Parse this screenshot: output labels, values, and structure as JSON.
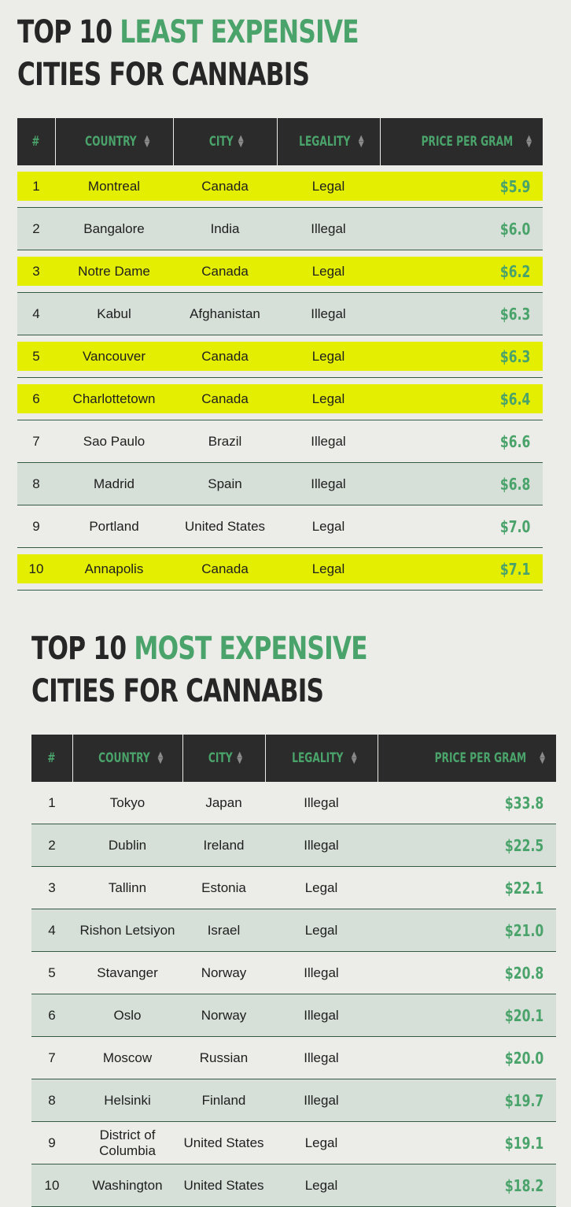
{
  "least": {
    "title_line1_prefix": "TOP 10 ",
    "title_line1_accent": "LEAST EXPENSIVE",
    "title_line2": "CITIES FOR CANNABIS",
    "headers": [
      "#",
      "COUNTRY",
      "CITY",
      "LEGALITY",
      "PRICE PER GRAM"
    ],
    "sort_icon": "sort-updown-icon",
    "rows": [
      {
        "rank": "1",
        "country": "Montreal",
        "city": "Canada",
        "legality": "Legal",
        "price": "$5.9",
        "highlight": true
      },
      {
        "rank": "2",
        "country": "Bangalore",
        "city": "India",
        "legality": "Illegal",
        "price": "$6.0",
        "highlight": false
      },
      {
        "rank": "3",
        "country": "Notre Dame",
        "city": "Canada",
        "legality": "Legal",
        "price": "$6.2",
        "highlight": true
      },
      {
        "rank": "4",
        "country": "Kabul",
        "city": "Afghanistan",
        "legality": "Illegal",
        "price": "$6.3",
        "highlight": false
      },
      {
        "rank": "5",
        "country": "Vancouver",
        "city": "Canada",
        "legality": "Legal",
        "price": "$6.3",
        "highlight": true
      },
      {
        "rank": "6",
        "country": "Charlottetown",
        "city": "Canada",
        "legality": "Legal",
        "price": "$6.4",
        "highlight": true
      },
      {
        "rank": "7",
        "country": "Sao Paulo",
        "city": "Brazil",
        "legality": "Illegal",
        "price": "$6.6",
        "highlight": false
      },
      {
        "rank": "8",
        "country": "Madrid",
        "city": "Spain",
        "legality": "Illegal",
        "price": "$6.8",
        "highlight": false
      },
      {
        "rank": "9",
        "country": "Portland",
        "city": "United States",
        "legality": "Legal",
        "price": "$7.0",
        "highlight": false
      },
      {
        "rank": "10",
        "country": "Annapolis",
        "city": "Canada",
        "legality": "Legal",
        "price": "$7.1",
        "highlight": true
      }
    ]
  },
  "most": {
    "title_line1_prefix": "TOP 10 ",
    "title_line1_accent": "MOST EXPENSIVE",
    "title_line2": "CITIES FOR CANNABIS",
    "headers": [
      "#",
      "COUNTRY",
      "CITY",
      "LEGALITY",
      "PRICE PER GRAM"
    ],
    "rows": [
      {
        "rank": "1",
        "country": "Tokyo",
        "city": "Japan",
        "legality": "Illegal",
        "price": "$33.8"
      },
      {
        "rank": "2",
        "country": "Dublin",
        "city": "Ireland",
        "legality": "Illegal",
        "price": "$22.5"
      },
      {
        "rank": "3",
        "country": "Tallinn",
        "city": "Estonia",
        "legality": "Legal",
        "price": "$22.1"
      },
      {
        "rank": "4",
        "country": "Rishon Letsiyon",
        "city": "Israel",
        "legality": "Legal",
        "price": "$21.0"
      },
      {
        "rank": "5",
        "country": "Stavanger",
        "city": "Norway",
        "legality": "Illegal",
        "price": "$20.8"
      },
      {
        "rank": "6",
        "country": "Oslo",
        "city": "Norway",
        "legality": "Illegal",
        "price": "$20.1"
      },
      {
        "rank": "7",
        "country": "Moscow",
        "city": "Russian",
        "legality": "Illegal",
        "price": "$20.0"
      },
      {
        "rank": "8",
        "country": "Helsinki",
        "city": "Finland",
        "legality": "Illegal",
        "price": "$19.7"
      },
      {
        "rank": "9",
        "country": "District of Columbia",
        "city": "United States",
        "legality": "Legal",
        "price": "$19.1"
      },
      {
        "rank": "10",
        "country": "Washington",
        "city": "United States",
        "legality": "Legal",
        "price": "$18.2"
      }
    ]
  },
  "colors": {
    "accent": "#4aa36a",
    "highlight": "#e4ee00",
    "header_bg": "#2b2b2b",
    "stripe": "#d6e0d8"
  }
}
